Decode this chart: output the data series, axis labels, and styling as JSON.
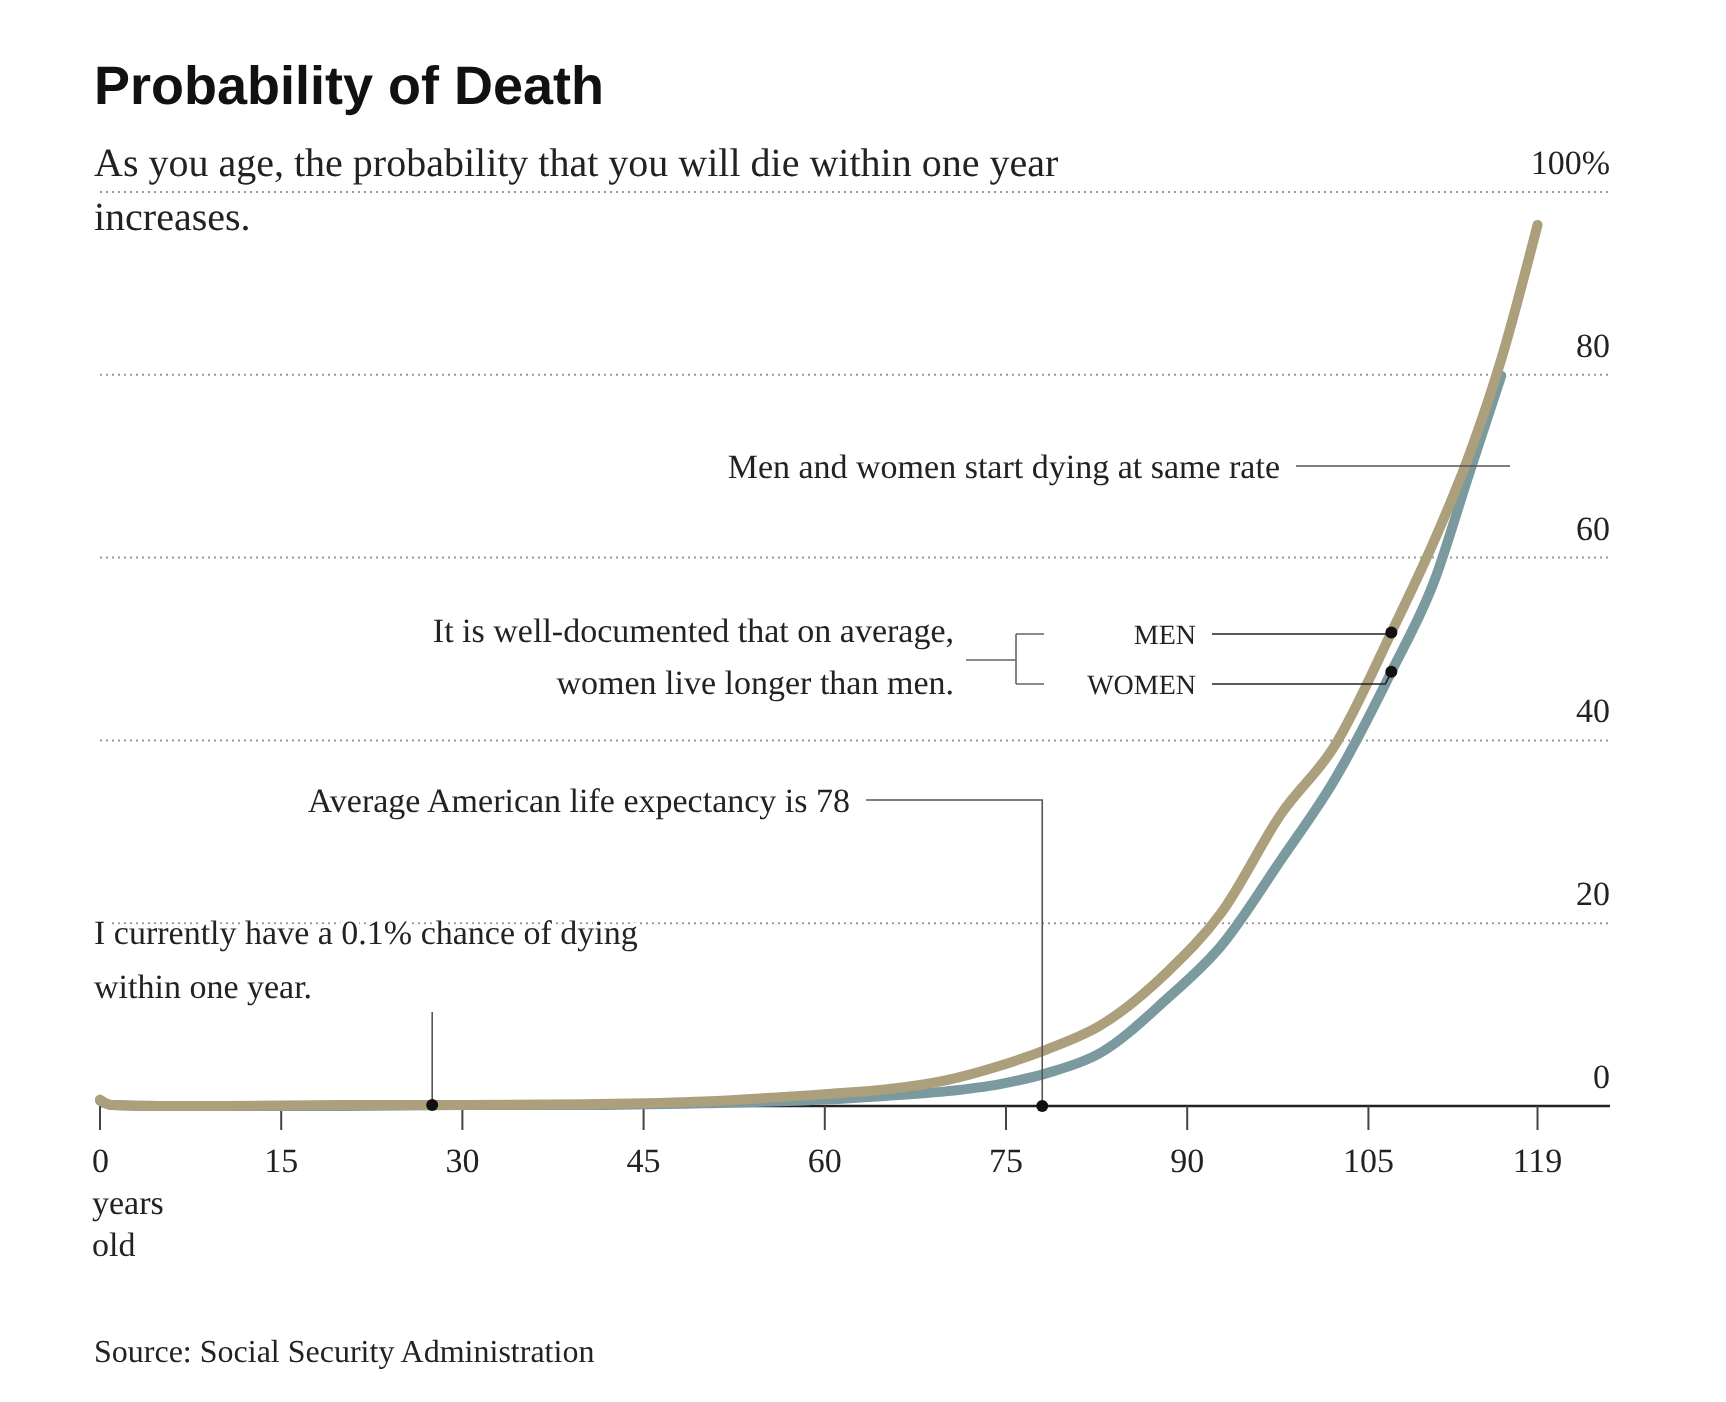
{
  "chart_data": {
    "type": "line",
    "title": "Probability of Death",
    "subtitle": "As you age, the probability that you will die within one year increases.",
    "x": [
      0,
      1,
      5,
      10,
      20,
      30,
      40,
      50,
      60,
      65,
      70,
      74.5,
      78.4,
      82.8,
      88.3,
      92.8,
      97.8,
      102.2,
      106.9,
      110.5,
      113.2,
      116,
      119
    ],
    "series": [
      {
        "name": "MEN",
        "color": "#ab9f7c",
        "values": [
          0.7,
          0.1,
          0,
          0,
          0.1,
          0.1,
          0.2,
          0.5,
          1.3,
          1.8,
          2.8,
          4.4,
          6.2,
          8.8,
          14.6,
          21.1,
          32,
          39.4,
          51.8,
          62,
          70.7,
          81.7,
          96.4
        ]
      },
      {
        "name": "WOMEN",
        "color": "#7b9aa0",
        "values": [
          0.6,
          0.1,
          0,
          0,
          0,
          0.1,
          0.1,
          0.3,
          0.7,
          1.1,
          1.6,
          2.4,
          3.6,
          5.8,
          11.7,
          17.5,
          27,
          35.7,
          47.5,
          57.6,
          68.6,
          79.9,
          null
        ]
      }
    ],
    "xlim": [
      0,
      125
    ],
    "xticks": [
      {
        "value": 0,
        "label": "0 years old"
      },
      15,
      30,
      45,
      60,
      75,
      90,
      105,
      119
    ],
    "ylim": [
      0,
      100
    ],
    "yticks": [
      0,
      20,
      40,
      60,
      80,
      {
        "value": 100,
        "label": "100%"
      }
    ],
    "grid": "y",
    "line_style": "solid",
    "marker": "none",
    "annotations": [
      {
        "text": "I currently have a 0.1% chance of dying within one year.",
        "x": 27.5,
        "y": 0.1
      },
      {
        "text": "Average American life expectancy is 78",
        "x": 78,
        "y": 0
      },
      "Men and women start dying at same rate",
      "It is well-documented that on average, women live longer than men.",
      "Source: Social Security Administration"
    ]
  }
}
